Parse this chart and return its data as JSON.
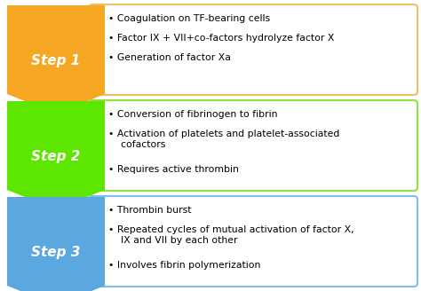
{
  "steps": [
    {
      "label": "Step 1",
      "arrow_color": "#F5A623",
      "box_border_color": "#F0C060",
      "bullets": [
        "Coagulation on TF-bearing cells",
        "Factor IX + VII+co-factors hydrolyze factor X",
        "Generation of factor Xa"
      ]
    },
    {
      "label": "Step 2",
      "arrow_color": "#5CE600",
      "box_border_color": "#90E040",
      "bullets": [
        "Conversion of fibrinogen to fibrin",
        "Activation of platelets and platelet-associated\n    cofactors",
        "Requires active thrombin"
      ]
    },
    {
      "label": "Step 3",
      "arrow_color": "#5BA8E0",
      "box_border_color": "#80C0E8",
      "bullets": [
        "Thrombin burst",
        "Repeated cycles of mutual activation of factor X,\n    IX and VII by each other",
        "Involves fibrin polymerization"
      ]
    }
  ],
  "background_color": "#FFFFFF",
  "text_color": "#000000",
  "step_label_color": "#FFFFFF",
  "step_fontsize": 11,
  "bullet_fontsize": 7.8,
  "fig_width": 4.74,
  "fig_height": 3.28,
  "dpi": 100
}
